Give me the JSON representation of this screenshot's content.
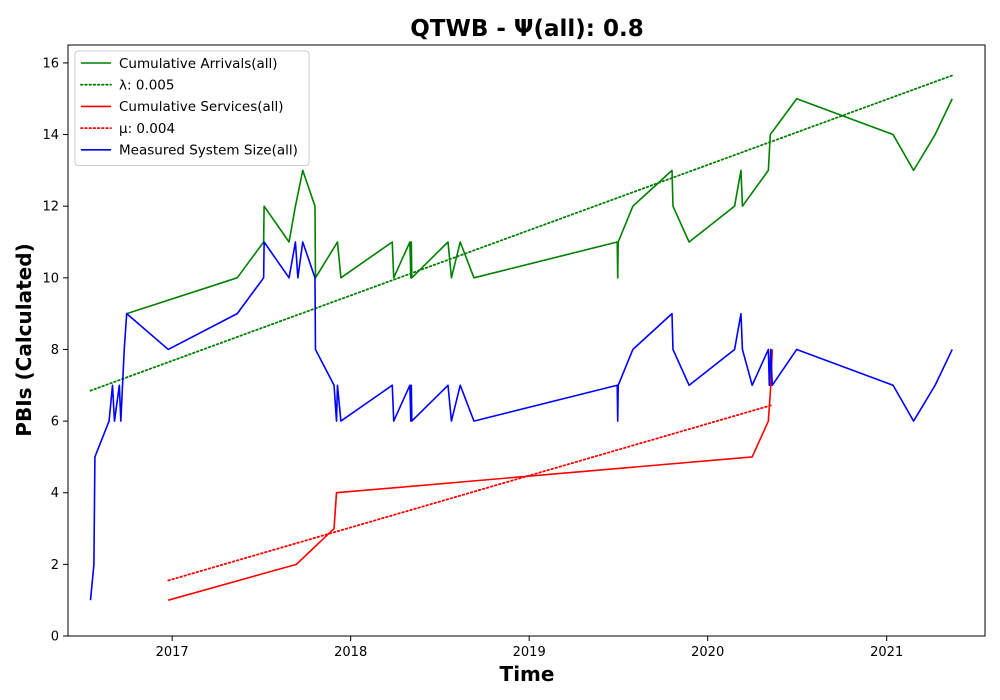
{
  "chart_data": {
    "type": "line",
    "title": "QTWB -  Ψ(all): 0.8",
    "xlabel": "Time",
    "ylabel": "PBIs (Calculated)",
    "xlim": [
      "2016-06-02",
      "2021-07-21"
    ],
    "ylim": [
      0,
      16.5
    ],
    "x_ticks": [
      "2017",
      "2018",
      "2019",
      "2020",
      "2021"
    ],
    "y_ticks": [
      "0",
      "2",
      "4",
      "6",
      "8",
      "10",
      "12",
      "14",
      "16"
    ],
    "grid": false,
    "legend_position": "top-left",
    "series": [
      {
        "name": "Cumulative Arrivals(all)",
        "style": "solid",
        "color": "#008000",
        "points": [
          [
            "2016-09-30",
            9
          ],
          [
            "2017-05-14",
            10
          ],
          [
            "2017-07-07",
            11
          ],
          [
            "2017-07-08",
            12
          ],
          [
            "2017-08-28",
            11
          ],
          [
            "2017-09-10",
            12
          ],
          [
            "2017-09-25",
            13
          ],
          [
            "2017-10-20",
            12
          ],
          [
            "2017-10-21",
            10
          ],
          [
            "2017-12-05",
            11
          ],
          [
            "2017-12-12",
            10
          ],
          [
            "2018-03-27",
            11
          ],
          [
            "2018-03-30",
            10
          ],
          [
            "2018-05-02",
            11
          ],
          [
            "2018-05-04",
            10
          ],
          [
            "2018-05-05",
            11
          ],
          [
            "2018-05-06",
            10
          ],
          [
            "2018-07-19",
            11
          ],
          [
            "2018-07-26",
            10
          ],
          [
            "2018-08-13",
            11
          ],
          [
            "2018-09-10",
            10
          ],
          [
            "2019-06-30",
            11
          ],
          [
            "2019-07-01",
            10
          ],
          [
            "2019-07-02",
            11
          ],
          [
            "2019-08-01",
            12
          ],
          [
            "2019-10-20",
            13
          ],
          [
            "2019-10-22",
            12
          ],
          [
            "2019-11-24",
            11
          ],
          [
            "2020-02-25",
            12
          ],
          [
            "2020-03-09",
            13
          ],
          [
            "2020-03-12",
            12
          ],
          [
            "2020-05-04",
            13
          ],
          [
            "2020-05-08",
            14
          ],
          [
            "2020-07-01",
            15
          ],
          [
            "2021-01-14",
            14
          ],
          [
            "2021-02-25",
            13
          ],
          [
            "2021-04-10",
            14
          ],
          [
            "2021-05-15",
            15
          ]
        ]
      },
      {
        "name": "λ: 0.005",
        "style": "dotted",
        "color": "#008000",
        "points": [
          [
            "2016-07-18",
            6.85
          ],
          [
            "2021-05-15",
            15.65
          ]
        ]
      },
      {
        "name": "Cumulative Services(all)",
        "style": "solid",
        "color": "#ff0000",
        "points": [
          [
            "2016-12-24",
            1
          ],
          [
            "2017-09-12",
            2
          ],
          [
            "2017-11-28",
            3
          ],
          [
            "2017-12-03",
            4
          ],
          [
            "2020-04-01",
            5
          ],
          [
            "2020-05-04",
            6
          ],
          [
            "2020-05-09",
            7
          ],
          [
            "2020-05-12",
            8
          ]
        ]
      },
      {
        "name": "μ: 0.004",
        "style": "dotted",
        "color": "#ff0000",
        "points": [
          [
            "2016-12-24",
            1.55
          ],
          [
            "2020-05-12",
            6.45
          ]
        ]
      },
      {
        "name": "Measured System Size(all)",
        "style": "solid",
        "color": "#0000ff",
        "points": [
          [
            "2016-07-18",
            1
          ],
          [
            "2016-07-25",
            2
          ],
          [
            "2016-07-27",
            5
          ],
          [
            "2016-08-25",
            6
          ],
          [
            "2016-09-01",
            7
          ],
          [
            "2016-09-05",
            6
          ],
          [
            "2016-09-15",
            7
          ],
          [
            "2016-09-18",
            6
          ],
          [
            "2016-09-25",
            8
          ],
          [
            "2016-09-30",
            9
          ],
          [
            "2016-12-24",
            8
          ],
          [
            "2017-05-14",
            9
          ],
          [
            "2017-07-07",
            10
          ],
          [
            "2017-07-08",
            11
          ],
          [
            "2017-08-28",
            10
          ],
          [
            "2017-09-10",
            11
          ],
          [
            "2017-09-15",
            10
          ],
          [
            "2017-09-25",
            11
          ],
          [
            "2017-10-20",
            10
          ],
          [
            "2017-10-21",
            8
          ],
          [
            "2017-11-28",
            7
          ],
          [
            "2017-12-03",
            6
          ],
          [
            "2017-12-05",
            7
          ],
          [
            "2017-12-12",
            6
          ],
          [
            "2018-03-27",
            7
          ],
          [
            "2018-03-30",
            6
          ],
          [
            "2018-05-02",
            7
          ],
          [
            "2018-05-04",
            6
          ],
          [
            "2018-05-05",
            7
          ],
          [
            "2018-05-06",
            6
          ],
          [
            "2018-07-19",
            7
          ],
          [
            "2018-07-26",
            6
          ],
          [
            "2018-08-13",
            7
          ],
          [
            "2018-09-10",
            6
          ],
          [
            "2019-06-30",
            7
          ],
          [
            "2019-07-01",
            6
          ],
          [
            "2019-07-02",
            7
          ],
          [
            "2019-08-01",
            8
          ],
          [
            "2019-10-20",
            9
          ],
          [
            "2019-10-22",
            8
          ],
          [
            "2019-11-24",
            7
          ],
          [
            "2020-02-25",
            8
          ],
          [
            "2020-03-09",
            9
          ],
          [
            "2020-03-12",
            8
          ],
          [
            "2020-04-01",
            7
          ],
          [
            "2020-05-04",
            8
          ],
          [
            "2020-05-06",
            7
          ],
          [
            "2020-05-09",
            8
          ],
          [
            "2020-05-12",
            7
          ],
          [
            "2020-07-01",
            8
          ],
          [
            "2021-01-14",
            7
          ],
          [
            "2021-02-25",
            6
          ],
          [
            "2021-04-10",
            7
          ],
          [
            "2021-05-15",
            8
          ]
        ]
      }
    ]
  }
}
